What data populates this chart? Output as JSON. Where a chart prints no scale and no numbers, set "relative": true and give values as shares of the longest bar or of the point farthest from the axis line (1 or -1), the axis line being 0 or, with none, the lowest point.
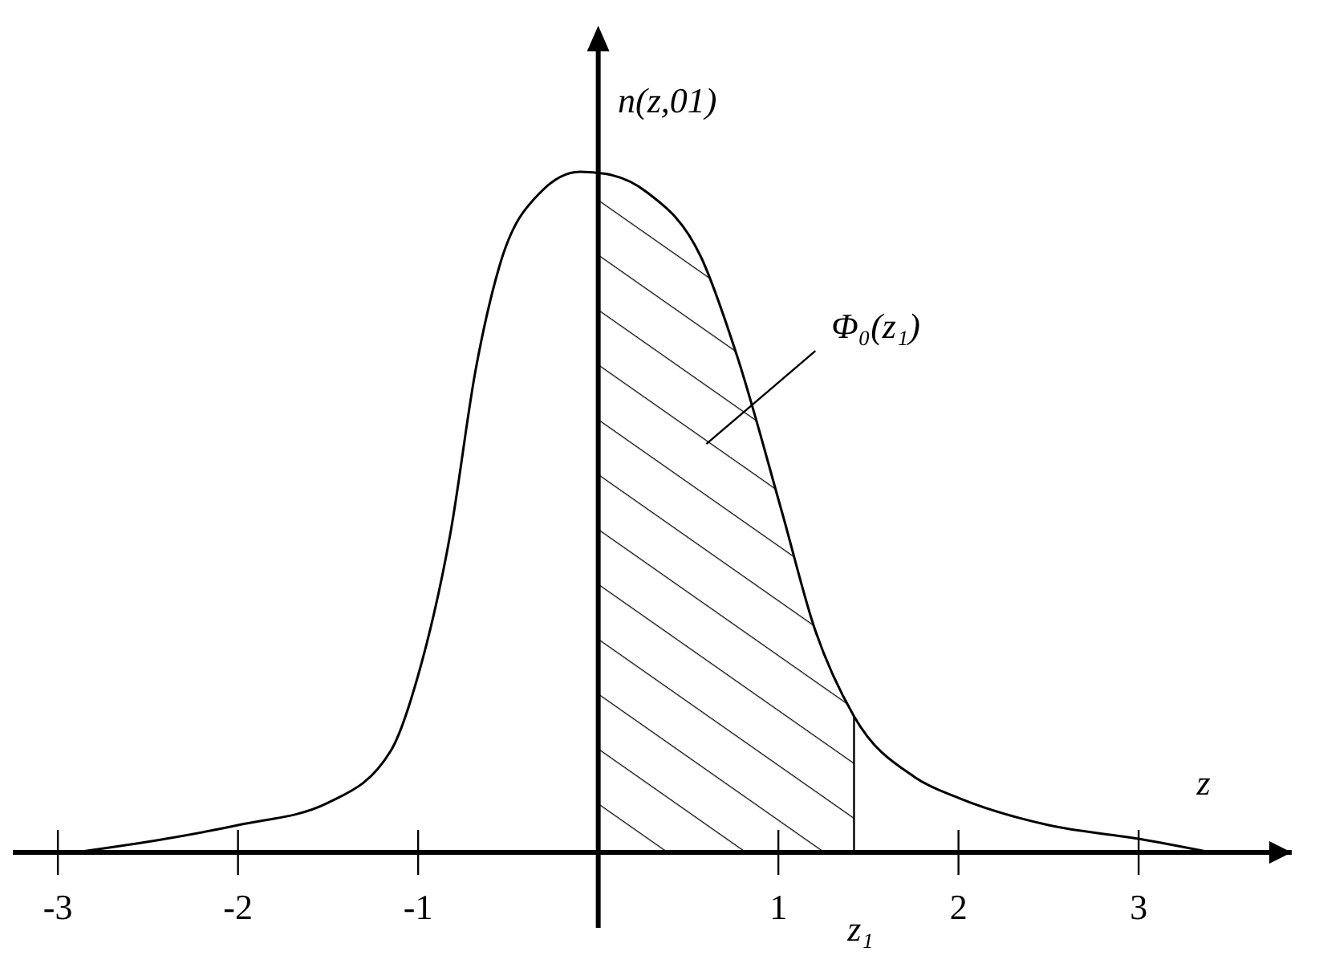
{
  "chart_data": {
    "type": "line",
    "relative": true,
    "xlabel": "z",
    "ylabel": "n(z,01)",
    "x": [
      -2.9,
      -2.4,
      -2,
      -1.5,
      -1.15,
      -1,
      -0.82,
      -0.68,
      -0.55,
      -0.32,
      -0.1,
      0.04,
      0.27,
      0.57,
      0.77,
      1.02,
      1.2,
      1.42,
      1.76,
      2,
      2.5,
      3,
      3.4
    ],
    "series": [
      {
        "color": "#000000",
        "values": [
          0,
          0.02,
          0.04,
          0.073,
          0.15,
          0.26,
          0.47,
          0.71,
          0.86,
          0.97,
          1,
          0.997,
          0.97,
          0.875,
          0.73,
          0.5,
          0.33,
          0.2,
          0.11,
          0.08,
          0.04,
          0.02,
          0
        ]
      },
      {
        "type": "area",
        "color": "#000000",
        "x": [
          0,
          0.04,
          0.27,
          0.57,
          0.77,
          1.02,
          1.2,
          1.42
        ],
        "values": [
          0.998,
          0.997,
          0.97,
          0.875,
          0.73,
          0.5,
          0.33,
          0.2
        ]
      }
    ],
    "xlim": [
      -3.25,
      3.85
    ],
    "xticks": [
      -3,
      -2,
      -1,
      1,
      2,
      3
    ],
    "ref_lines": [
      {
        "axis": "x",
        "value": 1.42,
        "label": "z₁"
      }
    ],
    "annotations": [
      "Φ₀(z₁)"
    ],
    "marker": "none",
    "line_style": "solid"
  }
}
